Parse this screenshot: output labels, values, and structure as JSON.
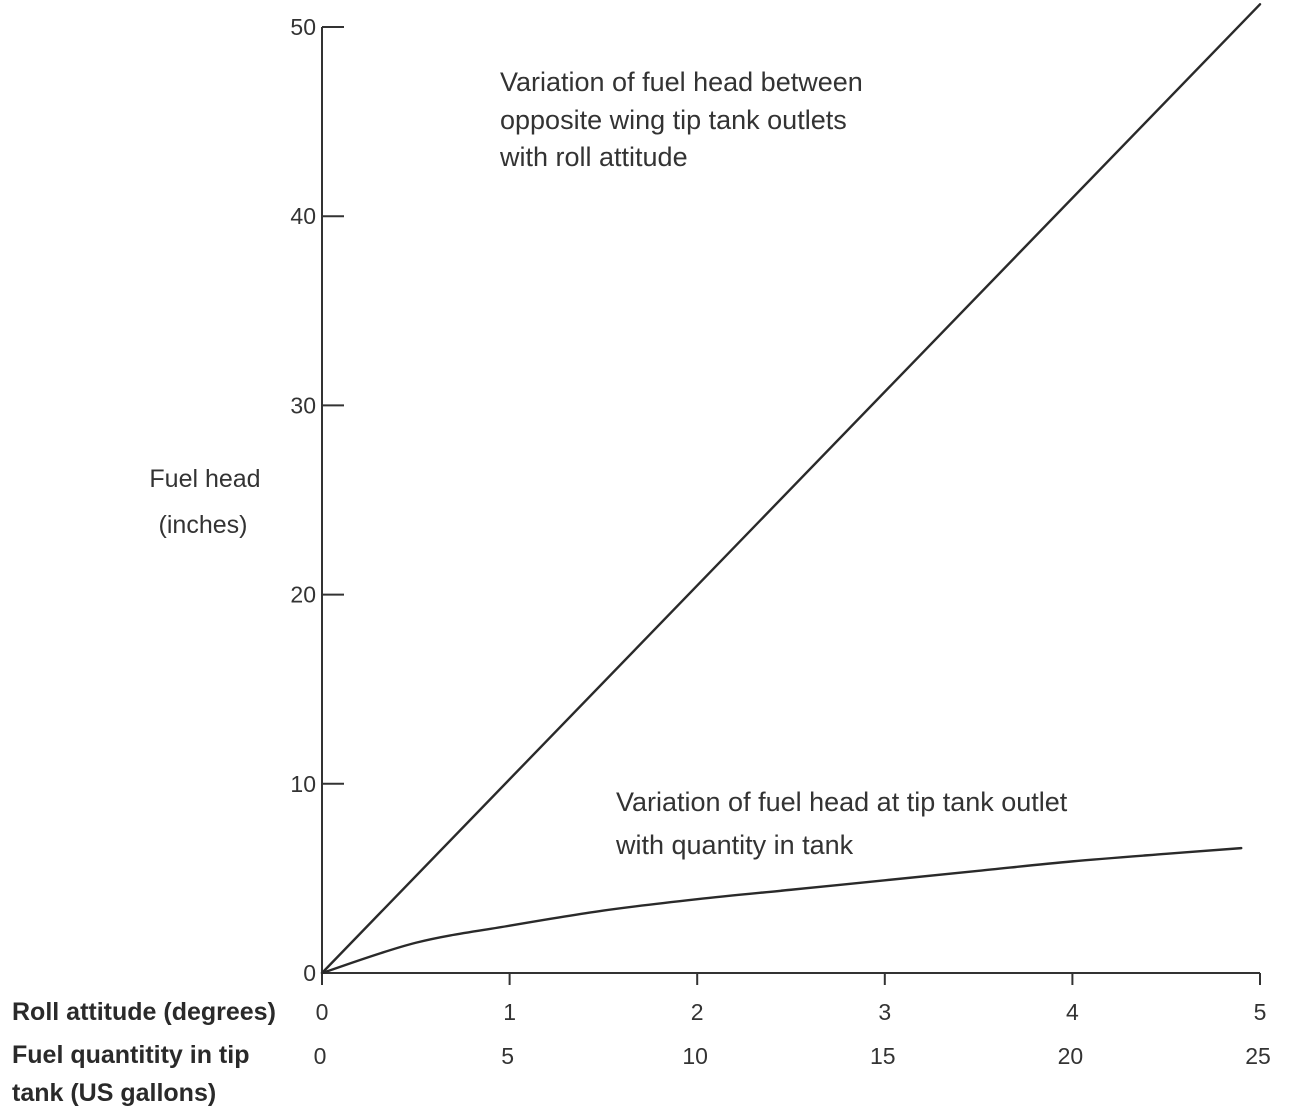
{
  "chart_data": {
    "type": "line",
    "ylabel": [
      "Fuel head",
      "(inches)"
    ],
    "xlabel_primary": "Roll attitude (degrees)",
    "xlabel_secondary": [
      "Fuel quantitity in tip",
      "tank (US gallons)"
    ],
    "y_ticks": [
      "0",
      "10",
      "20",
      "30",
      "40",
      "50"
    ],
    "x_ticks_primary": [
      "0",
      "1",
      "2",
      "3",
      "4",
      "5"
    ],
    "x_ticks_secondary": [
      "0",
      "5",
      "10",
      "15",
      "20",
      "25"
    ],
    "ylim": [
      0,
      50
    ],
    "xlim": [
      0,
      5
    ],
    "grid": false,
    "series": [
      {
        "name": "Variation of fuel head between opposite wing tip tank outlets with roll attitude",
        "label_lines": [
          "Variation of fuel head between",
          "opposite wing tip tank outlets",
          "with roll attitude"
        ],
        "x": [
          0,
          5
        ],
        "y": [
          0,
          51.2
        ]
      },
      {
        "name": "Variation of fuel head at tip tank outlet with quantity in tank",
        "label_lines": [
          "Variation of fuel head at tip tank outlet",
          "with quantity in tank"
        ],
        "x": [
          0,
          0.5,
          1,
          1.5,
          2,
          2.5,
          3,
          3.5,
          4,
          4.5,
          4.9
        ],
        "y": [
          0,
          1.6,
          2.5,
          3.3,
          3.9,
          4.4,
          4.9,
          5.4,
          5.9,
          6.3,
          6.6
        ]
      }
    ]
  }
}
